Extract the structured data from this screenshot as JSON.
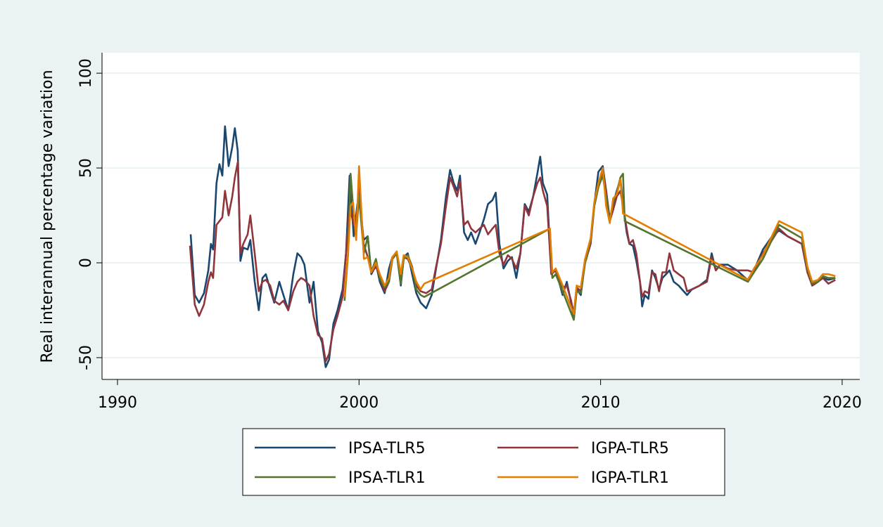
{
  "chart_data": {
    "type": "line",
    "ylabel": "Real interannual percentage variation",
    "xlim": [
      1989.36,
      2020.73
    ],
    "xticks": [
      1990,
      2000,
      2010,
      2020
    ],
    "ylim": [
      -61.5,
      110.8
    ],
    "yticks": [
      -50,
      0,
      50,
      100
    ],
    "grid": true,
    "legend": "bottom",
    "series": [
      {
        "name": "IPSA-TLR5",
        "color": "#1a476f",
        "x": [
          1993.03,
          1993.2,
          1993.38,
          1993.58,
          1993.76,
          1993.87,
          1993.96,
          1994.1,
          1994.22,
          1994.34,
          1994.45,
          1994.6,
          1994.75,
          1994.86,
          1994.98,
          1995.09,
          1995.21,
          1995.39,
          1995.5,
          1995.68,
          1995.85,
          1996.0,
          1996.14,
          1996.32,
          1996.49,
          1996.7,
          1996.87,
          1997.07,
          1997.28,
          1997.45,
          1997.6,
          1997.74,
          1997.95,
          1998.12,
          1998.3,
          1998.47,
          1998.62,
          1998.76,
          1998.94,
          1999.11,
          1999.32,
          1999.46,
          1999.61,
          1999.78,
          1999.93,
          2000.01,
          2000.19,
          2000.36,
          2000.51,
          2000.71,
          2000.86,
          2001.06,
          2001.24,
          2001.38,
          2001.56,
          2001.73,
          2001.85,
          2002.02,
          2002.2,
          2002.37,
          2002.55,
          2002.78,
          2003.01,
          2003.19,
          2003.39,
          2003.6,
          2003.77,
          2003.92,
          2004.06,
          2004.18,
          2004.35,
          2004.5,
          2004.64,
          2004.82,
          2004.99,
          2005.17,
          2005.34,
          2005.52,
          2005.66,
          2005.81,
          2005.98,
          2006.16,
          2006.33,
          2006.51,
          2006.68,
          2006.86,
          2007.03,
          2007.21,
          2007.38,
          2007.5,
          2007.61,
          2007.79,
          2007.96,
          2008.14,
          2008.28,
          2008.43,
          2008.6,
          2008.78,
          2008.89,
          2009.01,
          2009.18,
          2009.36,
          2009.59,
          2009.74,
          2009.91,
          2010.09,
          2010.23,
          2010.38,
          2010.52,
          2010.67,
          2010.82,
          2010.93,
          2011.08,
          2011.19,
          2011.34,
          2011.48,
          2011.63,
          2011.72,
          2011.83,
          2011.98,
          2012.13,
          2012.27,
          2012.42,
          2012.56,
          2012.71,
          2012.85,
          2013.03,
          2013.23,
          2013.44,
          2013.58,
          2013.78,
          2014.1,
          2014.4,
          2014.6,
          2014.77,
          2014.95,
          2015.27,
          2015.65,
          2016.08,
          2016.35,
          2016.72,
          2017.1,
          2017.39,
          2017.74,
          2018.33,
          2018.56,
          2018.76,
          2019.0,
          2019.2,
          2019.43,
          2019.72
        ],
        "values": [
          15,
          -17,
          -21,
          -16,
          -4,
          10,
          7,
          42,
          52,
          46,
          72,
          51,
          61,
          71,
          59,
          1,
          8,
          7,
          12,
          -10,
          -25,
          -8,
          -6,
          -14,
          -21,
          -10,
          -17,
          -25,
          -6,
          5,
          3,
          -1,
          -21,
          -10,
          -36,
          -42,
          -55,
          -51,
          -32,
          -25,
          -14,
          5,
          46,
          14,
          31,
          35,
          12,
          14,
          -6,
          -1,
          -10,
          -16,
          -3,
          3,
          5,
          -12,
          3,
          5,
          -6,
          -16,
          -21,
          -24,
          -17,
          -3,
          12,
          35,
          49,
          42,
          38,
          46,
          16,
          12,
          16,
          10,
          16,
          23,
          31,
          33,
          37,
          10,
          -3,
          1,
          3,
          -8,
          5,
          31,
          27,
          35,
          47,
          56,
          42,
          36,
          -6,
          -4,
          -10,
          -17,
          -10,
          -21,
          -30,
          -14,
          -17,
          1,
          12,
          31,
          48,
          51,
          38,
          23,
          31,
          38,
          44,
          31,
          16,
          10,
          9,
          1,
          -10,
          -23,
          -17,
          -19,
          -4,
          -8,
          -14,
          -8,
          -6,
          -4,
          -10,
          -12,
          -15,
          -17,
          -14,
          -12,
          -9,
          5,
          -4,
          -1,
          -1,
          -4,
          -9,
          -4,
          7,
          14,
          17,
          14,
          10,
          -4,
          -12,
          -10,
          -8,
          -9,
          -8
        ]
      },
      {
        "name": "IGPA-TLR5",
        "color": "#90353b",
        "x": [
          1993.0,
          1993.2,
          1993.38,
          1993.58,
          1993.76,
          1993.87,
          1993.96,
          1994.1,
          1994.22,
          1994.34,
          1994.45,
          1994.6,
          1994.75,
          1994.86,
          1994.98,
          1995.09,
          1995.21,
          1995.39,
          1995.5,
          1995.68,
          1995.85,
          1996.0,
          1996.14,
          1996.32,
          1996.49,
          1996.7,
          1996.87,
          1997.07,
          1997.28,
          1997.45,
          1997.6,
          1997.74,
          1997.95,
          1998.12,
          1998.3,
          1998.47,
          1998.62,
          1998.76,
          1998.94,
          1999.11,
          1999.32,
          1999.46,
          1999.61,
          1999.78,
          1999.93,
          2000.01,
          2000.19,
          2000.36,
          2000.51,
          2000.71,
          2000.86,
          2001.06,
          2001.24,
          2001.38,
          2001.56,
          2001.73,
          2001.85,
          2002.02,
          2002.2,
          2002.37,
          2002.55,
          2002.78,
          2003.01,
          2003.19,
          2003.39,
          2003.6,
          2003.77,
          2003.92,
          2004.06,
          2004.18,
          2004.35,
          2004.5,
          2004.64,
          2004.82,
          2004.99,
          2005.17,
          2005.34,
          2005.52,
          2005.66,
          2005.81,
          2005.98,
          2006.16,
          2006.33,
          2006.51,
          2006.68,
          2006.86,
          2007.03,
          2007.21,
          2007.38,
          2007.5,
          2007.61,
          2007.79,
          2007.96,
          2008.14,
          2008.28,
          2008.43,
          2008.6,
          2008.78,
          2008.89,
          2009.01,
          2009.18,
          2009.36,
          2009.59,
          2009.74,
          2009.91,
          2010.09,
          2010.23,
          2010.38,
          2010.52,
          2010.67,
          2010.82,
          2010.93,
          2011.08,
          2011.19,
          2011.34,
          2011.48,
          2011.63,
          2011.72,
          2011.83,
          2011.98,
          2012.13,
          2012.27,
          2012.42,
          2012.56,
          2012.71,
          2012.85,
          2013.03,
          2013.23,
          2013.44,
          2013.58,
          2013.78,
          2014.1,
          2014.4,
          2014.6,
          2014.77,
          2014.95,
          2015.27,
          2015.65,
          2016.08,
          2016.35,
          2016.72,
          2017.1,
          2017.39,
          2017.74,
          2018.33,
          2018.56,
          2018.76,
          2019.0,
          2019.2,
          2019.43,
          2019.72
        ],
        "values": [
          9,
          -22,
          -28,
          -22,
          -10,
          -5,
          -8,
          20,
          22,
          24,
          38,
          25,
          35,
          45,
          53,
          5,
          10,
          15,
          25,
          5,
          -15,
          -10,
          -9,
          -12,
          -20,
          -22,
          -20,
          -25,
          -15,
          -10,
          -8,
          -9,
          -12,
          -28,
          -38,
          -40,
          -52,
          -48,
          -35,
          -28,
          -18,
          5,
          30,
          20,
          28,
          40,
          10,
          3,
          -5,
          -2,
          -8,
          -15,
          -10,
          2,
          5,
          -8,
          3,
          2,
          -3,
          -12,
          -15,
          -16,
          -14,
          -2,
          10,
          30,
          45,
          40,
          35,
          43,
          20,
          22,
          18,
          16,
          18,
          20,
          15,
          18,
          20,
          5,
          -1,
          4,
          2,
          -3,
          5,
          30,
          25,
          35,
          42,
          45,
          38,
          30,
          -6,
          -4,
          -8,
          -13,
          -12,
          -20,
          -27,
          -13,
          -15,
          0,
          10,
          30,
          40,
          48,
          38,
          22,
          28,
          35,
          38,
          30,
          18,
          10,
          12,
          5,
          -10,
          -18,
          -15,
          -16,
          -5,
          -6,
          -15,
          -5,
          -5,
          5,
          -4,
          -6,
          -8,
          -15,
          -14,
          -12,
          -10,
          3,
          -4,
          -1,
          -3,
          -4,
          -4,
          -5,
          5,
          12,
          18,
          14,
          10,
          -5,
          -12,
          -10,
          -8,
          -11,
          -9
        ]
      },
      {
        "name": "IPSA-TLR1",
        "color": "#55752f",
        "x": [
          1999.4,
          1999.55,
          1999.65,
          1999.75,
          1999.88,
          2000.0,
          2000.2,
          2000.36,
          2000.5,
          2000.7,
          2000.86,
          2001.06,
          2001.24,
          2001.38,
          2001.56,
          2001.73,
          2001.85,
          2002.02,
          2002.2,
          2002.37,
          2002.55,
          2002.7,
          2007.9,
          2008.0,
          2008.14,
          2008.43,
          2008.89,
          2009.01,
          2009.18,
          2009.36,
          2009.59,
          2009.74,
          2009.91,
          2010.09,
          2010.23,
          2010.38,
          2010.52,
          2010.67,
          2010.82,
          2010.93,
          2011.0,
          2016.1,
          2016.35,
          2016.72,
          2017.39,
          2018.33,
          2018.56,
          2018.76,
          2019.0,
          2019.2,
          2019.43,
          2019.72
        ],
        "values": [
          -20,
          5,
          47,
          30,
          15,
          35,
          5,
          14,
          -5,
          2,
          -8,
          -13,
          -10,
          2,
          5,
          -11,
          2,
          4,
          -2,
          -14,
          -17,
          -18,
          18,
          -8,
          -6,
          -15,
          -30,
          -15,
          -16,
          0,
          12,
          30,
          40,
          46,
          35,
          22,
          32,
          37,
          45,
          47,
          22,
          -10,
          -5,
          2,
          20,
          13,
          -3,
          -11,
          -10,
          -7,
          -8,
          -8
        ]
      },
      {
        "name": "IGPA-TLR1",
        "color": "#e37e00",
        "x": [
          1999.4,
          1999.55,
          1999.65,
          1999.75,
          1999.88,
          2000.0,
          2000.2,
          2000.36,
          2000.5,
          2000.7,
          2000.86,
          2001.06,
          2001.24,
          2001.38,
          2001.56,
          2001.73,
          2001.85,
          2002.02,
          2002.2,
          2002.37,
          2002.55,
          2002.7,
          2007.9,
          2008.0,
          2008.14,
          2008.43,
          2008.89,
          2009.01,
          2009.18,
          2009.36,
          2009.59,
          2009.74,
          2009.91,
          2010.09,
          2010.23,
          2010.38,
          2010.52,
          2010.67,
          2010.82,
          2010.93,
          2016.1,
          2016.35,
          2016.72,
          2017.39,
          2018.33,
          2018.56,
          2018.76,
          2019.0,
          2019.2,
          2019.43,
          2019.72
        ],
        "values": [
          -18,
          6,
          30,
          32,
          12,
          51,
          2,
          3,
          -5,
          0,
          -6,
          -12,
          -8,
          3,
          6,
          -6,
          4,
          3,
          -3,
          -10,
          -14,
          -11,
          18,
          -5,
          -3,
          -12,
          -27,
          -12,
          -13,
          2,
          13,
          32,
          42,
          50,
          30,
          21,
          34,
          36,
          44,
          26,
          -9,
          -3,
          4,
          22,
          16,
          -2,
          -10,
          -9,
          -6,
          -6,
          -7
        ]
      }
    ]
  }
}
